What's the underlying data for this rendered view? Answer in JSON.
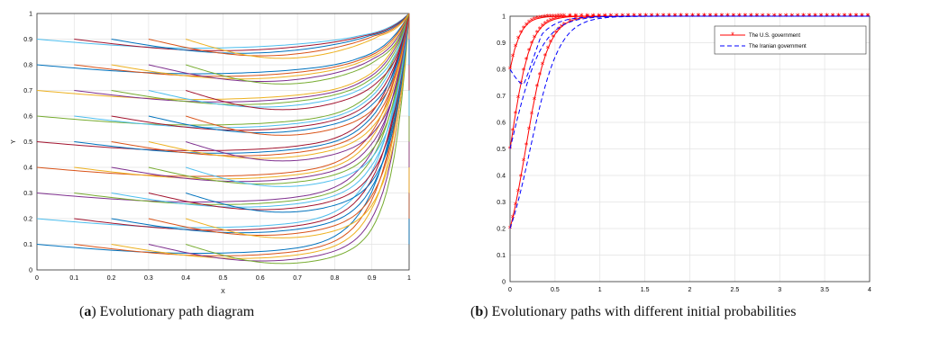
{
  "captions": [
    {
      "letter": "a",
      "text": "Evolutionary path diagram"
    },
    {
      "letter": "b",
      "text": "Evolutionary paths with different initial probabilities"
    }
  ],
  "chart_data": [
    {
      "type": "line",
      "title": "",
      "xlabel": "X",
      "ylabel": "Y",
      "xlim": [
        0,
        1
      ],
      "ylim": [
        0,
        1
      ],
      "xticks": [
        "0",
        "0.1",
        "0.2",
        "0.3",
        "0.4",
        "0.5",
        "0.6",
        "0.7",
        "0.8",
        "0.9",
        "1"
      ],
      "yticks": [
        "0",
        "0.1",
        "0.2",
        "0.3",
        "0.4",
        "0.5",
        "0.6",
        "0.7",
        "0.8",
        "0.9",
        "1"
      ],
      "grid": true,
      "converges_to": [
        1,
        1
      ],
      "start_x_values": [
        0.0,
        0.1,
        0.2,
        0.3,
        0.4
      ],
      "start_y_values": [
        0.1,
        0.2,
        0.3,
        0.4,
        0.5,
        0.6,
        0.7,
        0.8,
        0.9
      ],
      "series_colors": [
        "#0072bd",
        "#d95319",
        "#edb120",
        "#7e2f8e",
        "#77ac30",
        "#4dbeee",
        "#a2142f"
      ]
    },
    {
      "type": "line",
      "title": "",
      "xlabel": "",
      "ylabel": "",
      "xlim": [
        0,
        4
      ],
      "ylim": [
        0,
        1
      ],
      "xticks": [
        "0",
        "0.5",
        "1",
        "1.5",
        "2",
        "2.5",
        "3",
        "3.5",
        "4"
      ],
      "yticks": [
        "0",
        "0.1",
        "0.2",
        "0.3",
        "0.4",
        "0.5",
        "0.6",
        "0.7",
        "0.8",
        "0.9",
        "1"
      ],
      "grid": true,
      "legend_position": "top-right",
      "series": [
        {
          "name": "The U.S. government",
          "color": "#ff0000",
          "style": "solid-star",
          "initial_values": [
            0.2,
            0.5,
            0.8
          ]
        },
        {
          "name": "The Iranian government",
          "color": "#0000ff",
          "style": "dashed",
          "initial_values": [
            0.2,
            0.5,
            0.8
          ]
        }
      ]
    }
  ]
}
